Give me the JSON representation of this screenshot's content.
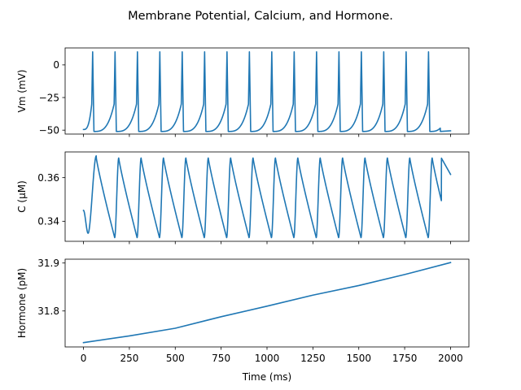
{
  "figure": {
    "title": "Membrane Potential, Calcium, and Hormone."
  },
  "chart_data": [
    {
      "type": "line",
      "ylabel": "Vm (mV)",
      "xlabel": "",
      "xlim": [
        -100,
        2100
      ],
      "ylim": [
        -53,
        13
      ],
      "xticks": [
        0,
        250,
        500,
        750,
        1000,
        1250,
        1500,
        1750,
        2000
      ],
      "yticks": [
        0,
        -25,
        -50
      ],
      "ytick_labels": [
        "0",
        "−25",
        "−50"
      ],
      "show_xtick_labels": false,
      "color": "#1f77b4",
      "model": "spikes",
      "period": 122,
      "first_peak": 50,
      "trough": -51,
      "peak": 10,
      "start": -49.5,
      "end": -50.5
    },
    {
      "type": "line",
      "ylabel": "C (μM)",
      "xlabel": "",
      "xlim": [
        -100,
        2100
      ],
      "ylim": [
        0.3308,
        0.3718
      ],
      "xticks": [
        0,
        250,
        500,
        750,
        1000,
        1250,
        1500,
        1750,
        2000
      ],
      "yticks": [
        0.36,
        0.34
      ],
      "ytick_labels": [
        "0.36",
        "0.34"
      ],
      "show_xtick_labels": false,
      "color": "#1f77b4",
      "model": "calcium",
      "period": 122,
      "first_peak": 70,
      "start": 0.345,
      "first_trough": 0.3345,
      "first_peak_value": 0.37,
      "peak": 0.369,
      "trough": 0.3325,
      "end": 0.3615
    },
    {
      "type": "line",
      "ylabel": "Hormone (pM)",
      "xlabel": "Time (ms)",
      "xlim": [
        -100,
        2100
      ],
      "ylim": [
        31.725,
        31.908
      ],
      "xticks": [
        0,
        250,
        500,
        750,
        1000,
        1250,
        1500,
        1750,
        2000
      ],
      "xtick_labels": [
        "0",
        "250",
        "500",
        "750",
        "1000",
        "1250",
        "1500",
        "1750",
        "2000"
      ],
      "yticks": [
        31.9,
        31.8
      ],
      "ytick_labels": [
        "31.9",
        "31.8"
      ],
      "show_xtick_labels": true,
      "color": "#1f77b4",
      "model": "ramp",
      "x": [
        0,
        250,
        500,
        750,
        1000,
        1250,
        1500,
        1750,
        2000
      ],
      "y": [
        31.734,
        31.748,
        31.764,
        31.788,
        31.81,
        31.833,
        31.853,
        31.876,
        31.901
      ]
    }
  ]
}
